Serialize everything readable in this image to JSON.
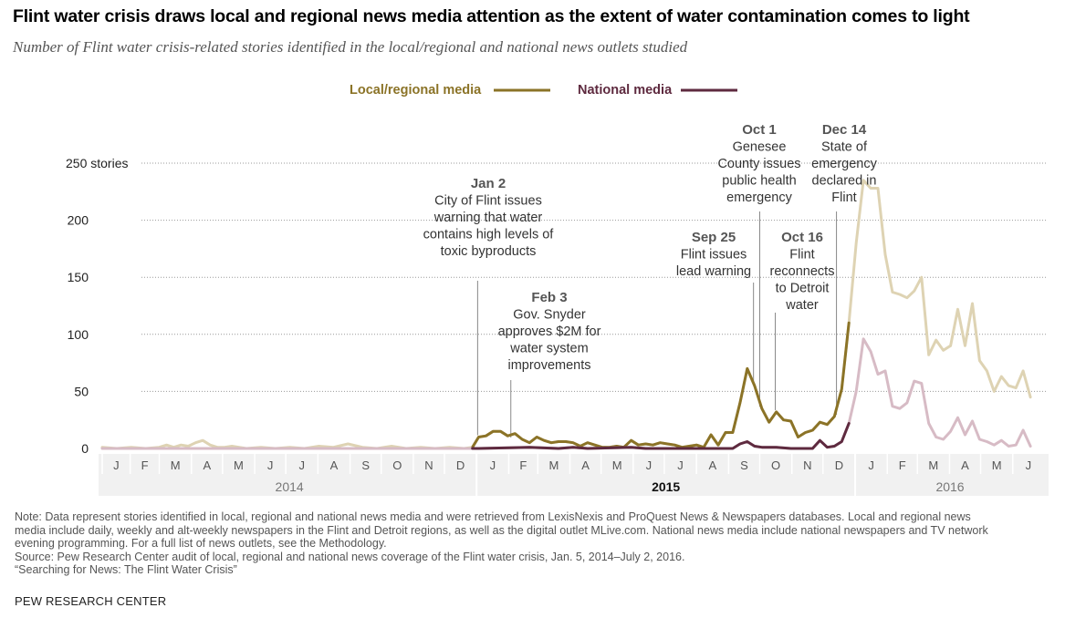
{
  "title": "Flint water crisis draws local and regional news media attention as the extent of water contamination comes to light",
  "subtitle": "Number of Flint water crisis-related stories identified in the local/regional and national news outlets studied",
  "notes": [
    "Note: Data represent stories identified in local, regional and national news media and were retrieved from LexisNexis and ProQuest News & Newspapers databases. Local and regional news",
    "media include daily, weekly and alt-weekly newspapers in the Flint and Detroit regions, as well as the digital outlet MLive.com. National news media include national newspapers and TV network",
    "evening programming. For a full list of news outlets, see the Methodology.",
    "Source: Pew Research Center audit of local, regional and national news coverage of the Flint water crisis, Jan. 5, 2014–July 2, 2016.",
    "“Searching for News: The Flint Water Crisis”"
  ],
  "brand": "PEW RESEARCH CENTER",
  "colors": {
    "local": "#8B7327",
    "local_faded": "#DED3B3",
    "national": "#5E2A3F",
    "national_faded": "#D7BBC5",
    "grid": "#999999",
    "axis_text": "#555555"
  },
  "chart_data": {
    "type": "line",
    "title": "Flint water crisis draws local and regional news media attention as the extent of water contamination comes to light",
    "subtitle": "Number of Flint water crisis-related stories identified in the local/regional and national news outlets studied",
    "x_unit": "week",
    "x_start": "2014-01-05",
    "x_end": "2016-07-02",
    "ylim": [
      0,
      250
    ],
    "yticks": [
      0,
      50,
      100,
      150,
      200,
      250
    ],
    "ytick_labels": [
      "0",
      "50",
      "100",
      "150",
      "200",
      "250 stories"
    ],
    "grid": true,
    "legend": "top-center",
    "month_labels": [
      "J",
      "F",
      "M",
      "A",
      "M",
      "J",
      "J",
      "A",
      "S",
      "O",
      "N",
      "D",
      "J",
      "F",
      "M",
      "A",
      "M",
      "J",
      "J",
      "A",
      "S",
      "O",
      "N",
      "D",
      "J",
      "F",
      "M",
      "A",
      "M",
      "J"
    ],
    "year_labels": [
      {
        "label": "2014",
        "bold": false
      },
      {
        "label": "2015",
        "bold": true
      },
      {
        "label": "2016",
        "bold": false
      }
    ],
    "highlight_range": [
      "2015-01-01",
      "2015-12-31"
    ],
    "series": [
      {
        "name": "Local/regional media",
        "color": "#8B7327",
        "points": [
          [
            "2014-01-05",
            1
          ],
          [
            "2014-01-19",
            0
          ],
          [
            "2014-02-02",
            1
          ],
          [
            "2014-02-16",
            0
          ],
          [
            "2014-03-01",
            1
          ],
          [
            "2014-03-08",
            3
          ],
          [
            "2014-03-15",
            1
          ],
          [
            "2014-03-22",
            3
          ],
          [
            "2014-03-29",
            2
          ],
          [
            "2014-04-05",
            5
          ],
          [
            "2014-04-12",
            7
          ],
          [
            "2014-04-19",
            3
          ],
          [
            "2014-04-26",
            1
          ],
          [
            "2014-05-03",
            1
          ],
          [
            "2014-05-10",
            2
          ],
          [
            "2014-05-17",
            1
          ],
          [
            "2014-05-24",
            0
          ],
          [
            "2014-06-07",
            1
          ],
          [
            "2014-06-21",
            0
          ],
          [
            "2014-07-05",
            1
          ],
          [
            "2014-07-19",
            0
          ],
          [
            "2014-08-02",
            2
          ],
          [
            "2014-08-16",
            1
          ],
          [
            "2014-08-30",
            4
          ],
          [
            "2014-09-13",
            1
          ],
          [
            "2014-09-27",
            0
          ],
          [
            "2014-10-11",
            2
          ],
          [
            "2014-10-25",
            0
          ],
          [
            "2014-11-08",
            1
          ],
          [
            "2014-11-22",
            0
          ],
          [
            "2014-12-06",
            1
          ],
          [
            "2014-12-20",
            0
          ],
          [
            "2014-12-28",
            1
          ],
          [
            "2015-01-03",
            10
          ],
          [
            "2015-01-10",
            11
          ],
          [
            "2015-01-17",
            15
          ],
          [
            "2015-01-24",
            15
          ],
          [
            "2015-01-31",
            11
          ],
          [
            "2015-02-07",
            13
          ],
          [
            "2015-02-14",
            8
          ],
          [
            "2015-02-21",
            5
          ],
          [
            "2015-02-28",
            10
          ],
          [
            "2015-03-07",
            7
          ],
          [
            "2015-03-14",
            5
          ],
          [
            "2015-03-21",
            6
          ],
          [
            "2015-03-28",
            6
          ],
          [
            "2015-04-04",
            5
          ],
          [
            "2015-04-11",
            2
          ],
          [
            "2015-04-18",
            5
          ],
          [
            "2015-04-25",
            3
          ],
          [
            "2015-05-02",
            1
          ],
          [
            "2015-05-09",
            1
          ],
          [
            "2015-05-16",
            2
          ],
          [
            "2015-05-23",
            1
          ],
          [
            "2015-05-30",
            7
          ],
          [
            "2015-06-06",
            3
          ],
          [
            "2015-06-13",
            4
          ],
          [
            "2015-06-20",
            3
          ],
          [
            "2015-06-27",
            5
          ],
          [
            "2015-07-04",
            4
          ],
          [
            "2015-07-11",
            3
          ],
          [
            "2015-07-18",
            1
          ],
          [
            "2015-07-25",
            2
          ],
          [
            "2015-08-01",
            3
          ],
          [
            "2015-08-08",
            1
          ],
          [
            "2015-08-15",
            12
          ],
          [
            "2015-08-22",
            3
          ],
          [
            "2015-08-29",
            14
          ],
          [
            "2015-09-05",
            14
          ],
          [
            "2015-09-12",
            40
          ],
          [
            "2015-09-19",
            70
          ],
          [
            "2015-09-26",
            55
          ],
          [
            "2015-10-03",
            35
          ],
          [
            "2015-10-10",
            23
          ],
          [
            "2015-10-17",
            32
          ],
          [
            "2015-10-24",
            25
          ],
          [
            "2015-10-31",
            24
          ],
          [
            "2015-11-07",
            10
          ],
          [
            "2015-11-14",
            14
          ],
          [
            "2015-11-21",
            16
          ],
          [
            "2015-11-28",
            23
          ],
          [
            "2015-12-05",
            21
          ],
          [
            "2015-12-12",
            28
          ],
          [
            "2015-12-19",
            52
          ],
          [
            "2015-12-26",
            110
          ],
          [
            "2016-01-02",
            180
          ],
          [
            "2016-01-09",
            235
          ],
          [
            "2016-01-16",
            228
          ],
          [
            "2016-01-23",
            228
          ],
          [
            "2016-01-30",
            170
          ],
          [
            "2016-02-06",
            137
          ],
          [
            "2016-02-13",
            135
          ],
          [
            "2016-02-20",
            132
          ],
          [
            "2016-02-27",
            138
          ],
          [
            "2016-03-05",
            150
          ],
          [
            "2016-03-12",
            82
          ],
          [
            "2016-03-19",
            95
          ],
          [
            "2016-03-26",
            86
          ],
          [
            "2016-04-02",
            90
          ],
          [
            "2016-04-09",
            122
          ],
          [
            "2016-04-16",
            90
          ],
          [
            "2016-04-23",
            127
          ],
          [
            "2016-04-30",
            77
          ],
          [
            "2016-05-07",
            68
          ],
          [
            "2016-05-14",
            50
          ],
          [
            "2016-05-21",
            63
          ],
          [
            "2016-05-28",
            55
          ],
          [
            "2016-06-04",
            53
          ],
          [
            "2016-06-11",
            68
          ],
          [
            "2016-06-18",
            45
          ]
        ]
      },
      {
        "name": "National media",
        "color": "#5E2A3F",
        "points": [
          [
            "2014-01-05",
            0
          ],
          [
            "2014-12-28",
            0
          ],
          [
            "2015-01-03",
            0
          ],
          [
            "2015-02-21",
            1
          ],
          [
            "2015-03-21",
            0
          ],
          [
            "2015-04-04",
            1
          ],
          [
            "2015-04-18",
            0
          ],
          [
            "2015-05-30",
            1
          ],
          [
            "2015-06-13",
            0
          ],
          [
            "2015-08-22",
            0
          ],
          [
            "2015-09-05",
            0
          ],
          [
            "2015-09-12",
            4
          ],
          [
            "2015-09-19",
            6
          ],
          [
            "2015-09-26",
            2
          ],
          [
            "2015-10-03",
            1
          ],
          [
            "2015-10-17",
            1
          ],
          [
            "2015-10-31",
            0
          ],
          [
            "2015-11-21",
            0
          ],
          [
            "2015-11-28",
            7
          ],
          [
            "2015-12-05",
            1
          ],
          [
            "2015-12-12",
            2
          ],
          [
            "2015-12-19",
            6
          ],
          [
            "2015-12-26",
            22
          ],
          [
            "2016-01-02",
            50
          ],
          [
            "2016-01-09",
            96
          ],
          [
            "2016-01-16",
            85
          ],
          [
            "2016-01-23",
            65
          ],
          [
            "2016-01-30",
            68
          ],
          [
            "2016-02-06",
            37
          ],
          [
            "2016-02-13",
            35
          ],
          [
            "2016-02-20",
            40
          ],
          [
            "2016-02-27",
            59
          ],
          [
            "2016-03-05",
            57
          ],
          [
            "2016-03-12",
            22
          ],
          [
            "2016-03-19",
            10
          ],
          [
            "2016-03-26",
            8
          ],
          [
            "2016-04-02",
            15
          ],
          [
            "2016-04-09",
            27
          ],
          [
            "2016-04-16",
            12
          ],
          [
            "2016-04-23",
            24
          ],
          [
            "2016-04-30",
            8
          ],
          [
            "2016-05-07",
            6
          ],
          [
            "2016-05-14",
            3
          ],
          [
            "2016-05-21",
            7
          ],
          [
            "2016-05-28",
            2
          ],
          [
            "2016-06-04",
            3
          ],
          [
            "2016-06-11",
            16
          ],
          [
            "2016-06-18",
            2
          ]
        ]
      }
    ],
    "annotations": [
      {
        "date": "2015-01-02",
        "y": 10,
        "bold": "Jan 2",
        "lines": [
          "City of Flint issues",
          "warning that water",
          "contains high levels of",
          "toxic byproducts"
        ]
      },
      {
        "date": "2015-02-03",
        "y": 8,
        "bold": "Feb 3",
        "lines": [
          "Gov. Snyder",
          "approves $2M for",
          "water system",
          "improvements"
        ]
      },
      {
        "date": "2015-09-25",
        "y": 55,
        "bold": "Sep 25",
        "lines": [
          "Flint issues",
          "lead warning"
        ]
      },
      {
        "date": "2015-10-01",
        "y": 35,
        "bold": "Oct 1",
        "lines": [
          "Genesee",
          "County issues",
          "public health",
          "emergency"
        ]
      },
      {
        "date": "2015-10-16",
        "y": 32,
        "bold": "Oct 16",
        "lines": [
          "Flint",
          "reconnects",
          "to Detroit",
          "water"
        ]
      },
      {
        "date": "2015-12-14",
        "y": 28,
        "bold": "Dec 14",
        "lines": [
          "State of",
          "emergency",
          "declared in",
          "Flint"
        ]
      }
    ]
  }
}
